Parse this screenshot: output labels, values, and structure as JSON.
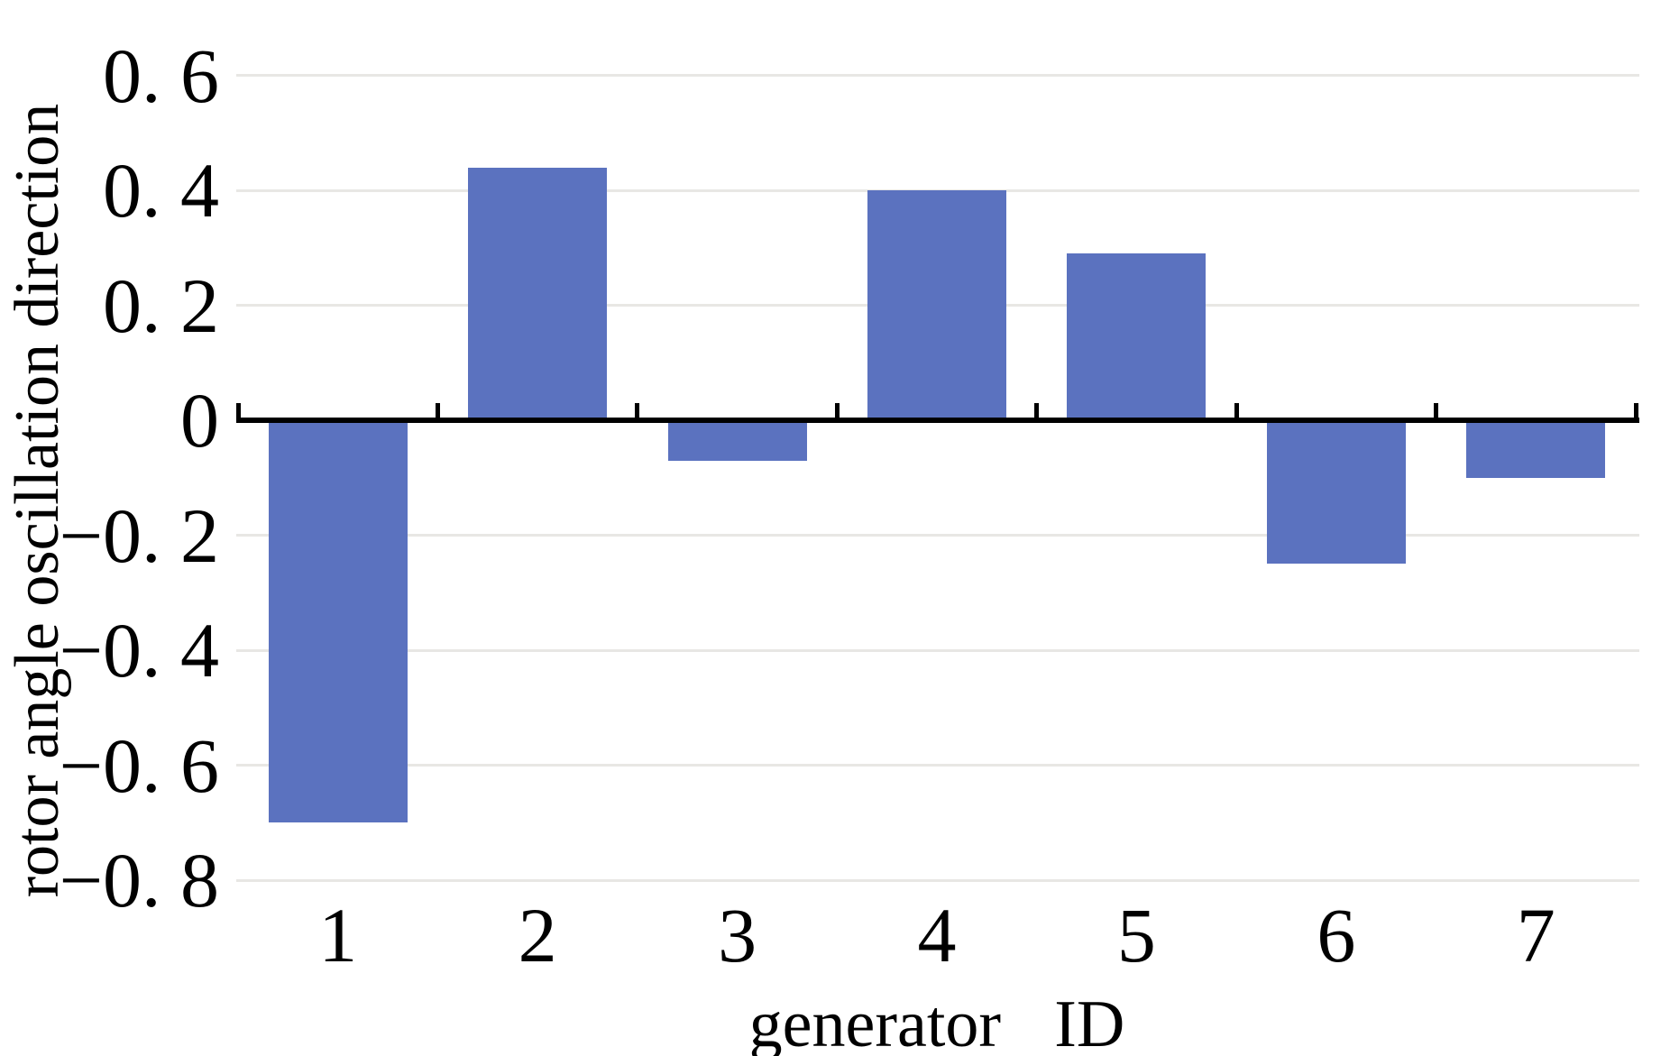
{
  "chart_data": {
    "type": "bar",
    "title": "",
    "xlabel": "generator ID",
    "ylabel": "rotor angle oscillation direction",
    "categories": [
      "1",
      "2",
      "3",
      "4",
      "5",
      "6",
      "7"
    ],
    "values": [
      -0.7,
      0.44,
      -0.07,
      0.4,
      0.29,
      -0.25,
      -0.1
    ],
    "yticks": [
      0.6,
      0.4,
      0.2,
      0,
      -0.2,
      -0.4,
      -0.6,
      -0.8
    ],
    "ytick_labels": [
      "0. 6",
      "0. 4",
      "0. 2",
      "0",
      "−0. 2",
      "−0. 4",
      "−0. 6",
      "−0. 8"
    ],
    "ylim": [
      -0.8,
      0.65
    ],
    "grid": "horizontal-only",
    "legend": "none",
    "x_axis_position": "zero",
    "tick_direction": "up-from-zero-axis",
    "bar_color": "#5b72bf",
    "axis_color": "#000000",
    "gridline_color": "#e8e7e4",
    "text_color": "#000000",
    "background_color": "#ffffff"
  }
}
